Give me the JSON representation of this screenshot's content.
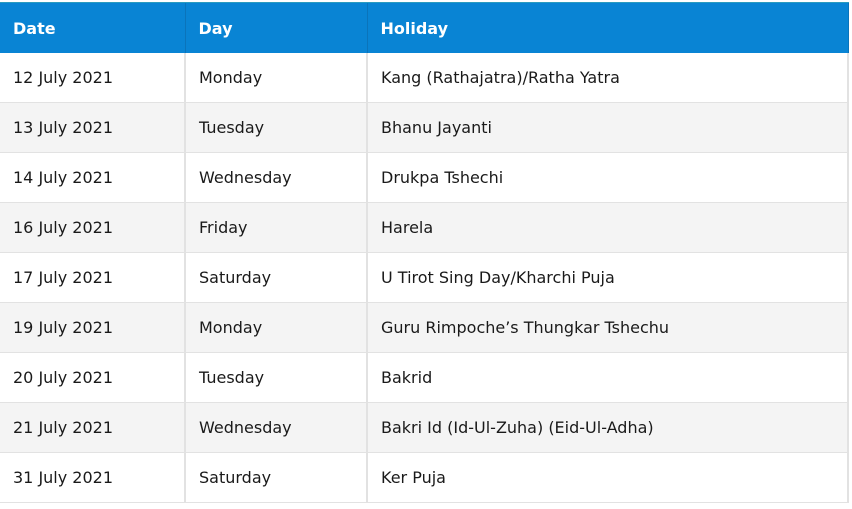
{
  "table": {
    "headers": [
      "Date",
      "Day",
      "Holiday"
    ],
    "rows": [
      [
        "12 July 2021",
        "Monday",
        "Kang (Rathajatra)/Ratha Yatra"
      ],
      [
        "13 July 2021",
        "Tuesday",
        "Bhanu Jayanti"
      ],
      [
        "14 July 2021",
        "Wednesday",
        "Drukpa Tshechi"
      ],
      [
        "16 July 2021",
        "Friday",
        "Harela"
      ],
      [
        "17 July 2021",
        "Saturday",
        "U Tirot Sing Day/Kharchi Puja"
      ],
      [
        "19 July 2021",
        "Monday",
        "Guru Rimpoche’s Thungkar Tshechu"
      ],
      [
        "20 July 2021",
        "Tuesday",
        "Bakrid"
      ],
      [
        "21 July 2021",
        "Wednesday",
        "Bakri Id (Id-Ul-Zuha) (Eid-Ul-Adha)"
      ],
      [
        "31 July 2021",
        "Saturday",
        "Ker Puja"
      ]
    ]
  },
  "colors": {
    "header_bg": "#0984d4",
    "stripe": "#f4f4f4"
  }
}
